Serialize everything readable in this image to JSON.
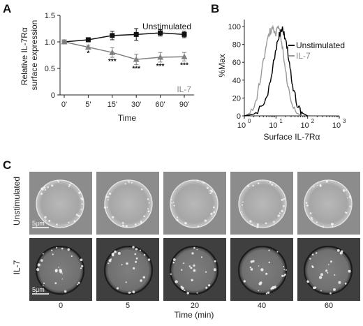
{
  "panels": {
    "a": "A",
    "b": "B",
    "c": "C"
  },
  "chart_data": [
    {
      "type": "line",
      "categories": [
        "0'",
        "5'",
        "15'",
        "30'",
        "60'",
        "90'"
      ],
      "xlabel": "Time",
      "ylabel": "Relative IL-7Rα surface expression",
      "ylim": [
        0,
        1.5
      ],
      "yticks": [
        "0",
        "0.5",
        "1.0",
        "1.5"
      ],
      "series": [
        {
          "name": "Unstimulated",
          "color": "#111111",
          "marker": "square",
          "values": [
            1.0,
            1.04,
            1.12,
            1.14,
            1.17,
            1.14
          ],
          "errors": [
            0.0,
            0.04,
            0.08,
            0.11,
            0.06,
            0.06
          ]
        },
        {
          "name": "IL-7",
          "color": "#808080",
          "marker": "triangle",
          "values": [
            1.0,
            0.9,
            0.8,
            0.67,
            0.71,
            0.72
          ],
          "errors": [
            0.0,
            0.04,
            0.09,
            0.1,
            0.09,
            0.08
          ]
        }
      ],
      "annotations": [
        "",
        "*",
        "***",
        "***",
        "***",
        "***"
      ]
    },
    {
      "type": "line",
      "title": "",
      "xlabel": "Surface IL-7Rα",
      "ylabel": "%Max",
      "ylim": [
        0,
        100
      ],
      "yticks": [
        "0",
        "20",
        "40",
        "60",
        "80",
        "100"
      ],
      "xscale": "log",
      "xticks": [
        "10",
        "10",
        "10",
        "10"
      ],
      "xtick_exponents": [
        "0",
        "1",
        "2",
        "3"
      ],
      "legend": "top-right",
      "series": [
        {
          "name": "Unstimulated",
          "color": "#000000",
          "x": [
            1,
            2,
            4,
            6,
            8,
            10,
            12,
            14,
            16,
            18,
            22,
            28,
            35,
            50,
            70,
            100
          ],
          "y": [
            0,
            2,
            10,
            30,
            55,
            75,
            88,
            96,
            100,
            92,
            78,
            55,
            30,
            10,
            3,
            0
          ]
        },
        {
          "name": "IL-7",
          "color": "#999999",
          "x": [
            1,
            1.5,
            2.5,
            3.5,
            5,
            6.5,
            8,
            10,
            12,
            14,
            17,
            22,
            30,
            45,
            70
          ],
          "y": [
            0,
            3,
            20,
            50,
            80,
            95,
            98,
            93,
            100,
            90,
            70,
            40,
            15,
            3,
            0
          ]
        }
      ]
    }
  ],
  "micrographs": {
    "rows": [
      "Unstimulated",
      "IL-7"
    ],
    "scale_bar": "5µm",
    "timepoints": [
      "0",
      "5",
      "20",
      "40",
      "60"
    ],
    "xlabel": "Time (min)"
  }
}
